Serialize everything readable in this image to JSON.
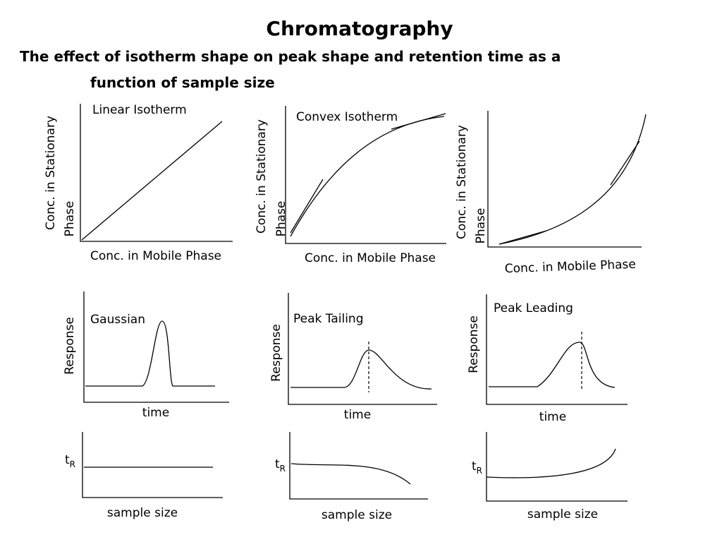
{
  "title": "Chromatography",
  "subtitle": [
    "The effect of isotherm shape on peak shape and retention time as a",
    "function of sample size"
  ],
  "isotherms": [
    {
      "label": "Linear Isotherm",
      "y_label": [
        "Conc. in Stationary",
        "Phase"
      ],
      "x_label": "Conc. in Mobile Phase"
    },
    {
      "label": "Convex Isotherm",
      "y_label": [
        "Conc. in Stationary",
        "Phase"
      ],
      "x_label": "Conc. in Mobile Phase"
    },
    {
      "y_label": [
        "Conc. in Stationary",
        "Phase"
      ],
      "x_label": "Conc. in Mobile Phase"
    }
  ],
  "peaks": [
    {
      "label": "Gaussian",
      "y_label": "Response",
      "x_label": "time"
    },
    {
      "label": "Peak Tailing",
      "y_label": "Response",
      "x_label": "time"
    },
    {
      "label": "Peak Leading",
      "y_label": "Response",
      "x_label": "time"
    }
  ],
  "retention": [
    {
      "y_label": "t",
      "y_label_sub": "R",
      "x_label": "sample size"
    },
    {
      "y_label": "t",
      "y_label_sub": "R",
      "x_label": "sample size"
    },
    {
      "y_label": "t",
      "y_label_sub": "R",
      "x_label": "sample size"
    }
  ]
}
